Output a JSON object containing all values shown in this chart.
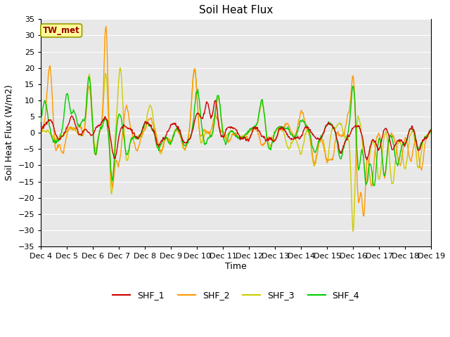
{
  "title": "Soil Heat Flux",
  "ylabel": "Soil Heat Flux (W/m2)",
  "xlabel": "Time",
  "ylim": [
    -35,
    35
  ],
  "yticks": [
    -35,
    -30,
    -25,
    -20,
    -15,
    -10,
    -5,
    0,
    5,
    10,
    15,
    20,
    25,
    30,
    35
  ],
  "date_start": 4,
  "date_end": 19,
  "annotation_text": "TW_met",
  "annotation_bg": "#FFFF99",
  "annotation_fg": "#990000",
  "annotation_border": "#999900",
  "colors": {
    "SHF_1": "#CC0000",
    "SHF_2": "#FF9900",
    "SHF_3": "#CCCC00",
    "SHF_4": "#00CC00"
  },
  "legend_labels": [
    "SHF_1",
    "SHF_2",
    "SHF_3",
    "SHF_4"
  ],
  "bg_color": "#E8E8E8",
  "fig_bg_color": "#FFFFFF",
  "grid_color": "#FFFFFF",
  "title_fontsize": 11,
  "axis_label_fontsize": 9,
  "tick_fontsize": 8
}
